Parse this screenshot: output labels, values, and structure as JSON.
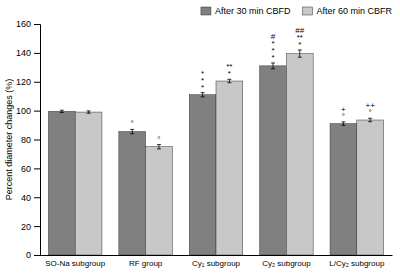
{
  "chart_data": {
    "type": "bar",
    "ylabel": "Percent diameter changes (%)",
    "categories": [
      "SO-Na subgroup",
      "RF group",
      "Cy₁ subgroup",
      "Cy₂ subgroup",
      "L/Cy₂ subgroup"
    ],
    "series": [
      {
        "name": "After 30 min CBFD",
        "color": "#808080",
        "values": [
          99.5,
          85.5,
          111.0,
          131.0,
          91.0
        ],
        "errors": [
          0.8,
          1.5,
          1.5,
          2.0,
          1.2
        ],
        "annotations": [
          [],
          [
            "°"
          ],
          [
            "*",
            "*",
            "*"
          ],
          [
            "*",
            "*",
            "*",
            "#"
          ],
          [
            "°",
            "+"
          ]
        ]
      },
      {
        "name": "After 60 min CBFR",
        "color": "#c8c8c8",
        "values": [
          99.0,
          75.0,
          120.5,
          139.5,
          93.5
        ],
        "errors": [
          0.8,
          1.5,
          1.2,
          2.5,
          1.2
        ],
        "annotations": [
          [],
          [
            "°"
          ],
          [
            "*",
            "**"
          ],
          [
            "*",
            "**",
            "##"
          ],
          [
            "°",
            "++"
          ]
        ]
      }
    ],
    "ylim": [
      0,
      160
    ],
    "yticks": [
      0,
      20,
      40,
      60,
      80,
      100,
      120,
      140,
      160
    ],
    "grid": false,
    "legend": "upper right"
  }
}
